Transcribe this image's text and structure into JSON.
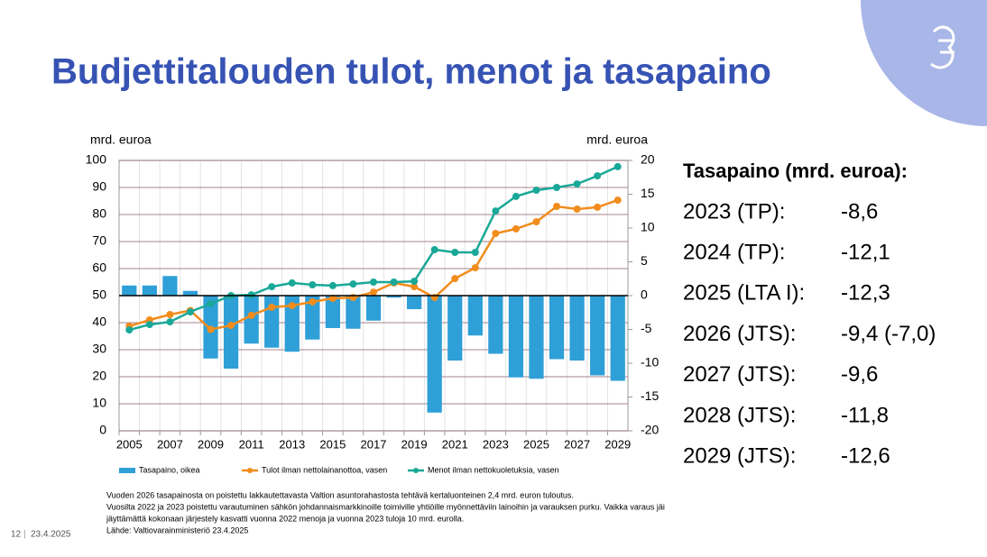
{
  "chart_data": {
    "type": "combo",
    "title": "Budjettitalouden tulot, menot ja tasapaino",
    "y_label": "mrd. euroa",
    "y2_label": "mrd. euroa",
    "categories": [
      "2005",
      null,
      "2007",
      null,
      "2009",
      null,
      "2011",
      null,
      "2013",
      null,
      "2015",
      null,
      "2017",
      null,
      "2019",
      null,
      "2021",
      null,
      "2023",
      null,
      "2025",
      null,
      "2027",
      null,
      "2029"
    ],
    "ylim": [
      0,
      100
    ],
    "yticks": [
      0,
      10,
      20,
      30,
      40,
      50,
      60,
      70,
      80,
      90,
      100
    ],
    "y2lim": [
      -20,
      20
    ],
    "y2ticks": [
      -20,
      -15,
      -10,
      -5,
      0,
      5,
      10,
      15,
      20
    ],
    "grid": true,
    "legend": "bottom",
    "series": [
      {
        "name": "Tasapaino, oikea",
        "type": "bar",
        "axis": "y2",
        "color": "#2f9fd8",
        "values": [
          1.5,
          1.5,
          2.9,
          0.7,
          -9.3,
          -10.8,
          -7.1,
          -7.7,
          -8.3,
          -6.5,
          -4.8,
          -4.9,
          -3.7,
          -0.3,
          -2.0,
          -17.3,
          -9.6,
          -5.9,
          -8.6,
          -12.1,
          -12.3,
          -9.4,
          -9.6,
          -11.8,
          -12.6
        ]
      },
      {
        "name": "Tulot ilman nettolainanottoa, vasen",
        "type": "line",
        "color": "#f28c1c",
        "values": [
          38.7,
          41,
          43,
          44.5,
          37.5,
          39,
          42.7,
          45.7,
          46.3,
          47.7,
          49,
          49.3,
          51.3,
          54.7,
          53.3,
          49.3,
          56.3,
          60.3,
          73,
          74.7,
          77.3,
          83,
          82,
          82.7,
          85.3
        ]
      },
      {
        "name": "Menot ilman nettokuoletuksia, vasen",
        "type": "line",
        "color": "#1aa898",
        "values": [
          37.3,
          39.3,
          40.3,
          44,
          47,
          50,
          50.3,
          53.3,
          54.7,
          54,
          53.7,
          54.3,
          55,
          55,
          55.3,
          67,
          66,
          66,
          81.3,
          86.7,
          89,
          90,
          91.3,
          94.3,
          97.7
        ]
      }
    ]
  },
  "summary": {
    "title": "Tasapaino (mrd. euroa):",
    "rows": [
      {
        "label": "2023 (TP):",
        "value": "-8,6"
      },
      {
        "label": "2024 (TP):",
        "value": "-12,1"
      },
      {
        "label": "2025 (LTA I):",
        "value": "-12,3"
      },
      {
        "label": "2026 (JTS):",
        "value": "-9,4 (-7,0)"
      },
      {
        "label": "2027 (JTS):",
        "value": "-9,6"
      },
      {
        "label": "2028 (JTS):",
        "value": "-11,8"
      },
      {
        "label": "2029 (JTS):",
        "value": "-12,6"
      }
    ]
  },
  "footnotes": [
    "Vuoden 2026 tasapainosta on poistettu lakkautettavasta Valtion asuntorahastosta tehtävä kertaluonteinen 2,4 mrd. euron tuloutus.",
    "Vuosilta 2022 ja 2023 poistettu varautuminen sähkön johdannaismarkkinoille toimiville yhtiöille myönnettäviin lainoihin ja varauksen purku. Vaikka varaus jäi",
    "jäyttämättä kokonaan järjestely kasvatti vuonna 2022 menoja ja vuonna 2023 tuloja 10 mrd. eurolla.",
    "Lähde: Valtiovarainministeriö 23.4.2025"
  ],
  "footer": {
    "page": "12",
    "date": "23.4.2025"
  }
}
